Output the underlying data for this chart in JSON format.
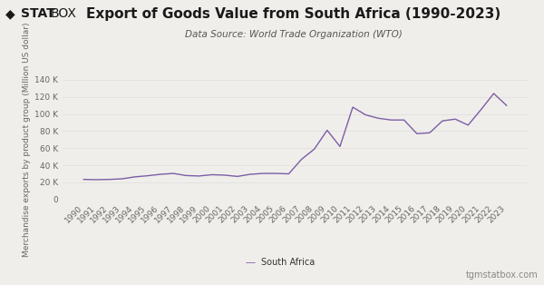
{
  "title": "Export of Goods Value from South Africa (1990-2023)",
  "subtitle": "Data Source: World Trade Organization (WTO)",
  "ylabel": "Merchandise exports by product group (Million US dollar)",
  "legend_label": "South Africa",
  "watermark": "tgmstatbox.com",
  "line_color": "#7b5ea7",
  "background_color": "#f0eeea",
  "years": [
    1990,
    1991,
    1992,
    1993,
    1994,
    1995,
    1996,
    1997,
    1998,
    1999,
    2000,
    2001,
    2002,
    2003,
    2004,
    2005,
    2006,
    2007,
    2008,
    2009,
    2010,
    2011,
    2012,
    2013,
    2014,
    2015,
    2016,
    2017,
    2018,
    2019,
    2020,
    2021,
    2022,
    2023
  ],
  "values": [
    23500,
    23200,
    23500,
    24200,
    26500,
    27800,
    29500,
    30500,
    28000,
    27500,
    29000,
    28500,
    27000,
    29500,
    30500,
    30500,
    30000,
    47000,
    59000,
    81000,
    62000,
    108000,
    99000,
    95000,
    93000,
    93000,
    77000,
    78000,
    92000,
    94000,
    87000,
    105000,
    124000,
    110000
  ],
  "ylim": [
    0,
    140000
  ],
  "yticks": [
    0,
    20000,
    40000,
    60000,
    80000,
    100000,
    120000,
    140000
  ],
  "title_fontsize": 11,
  "subtitle_fontsize": 7.5,
  "ylabel_fontsize": 6.5,
  "tick_fontsize": 6.5,
  "legend_fontsize": 7,
  "watermark_fontsize": 7
}
